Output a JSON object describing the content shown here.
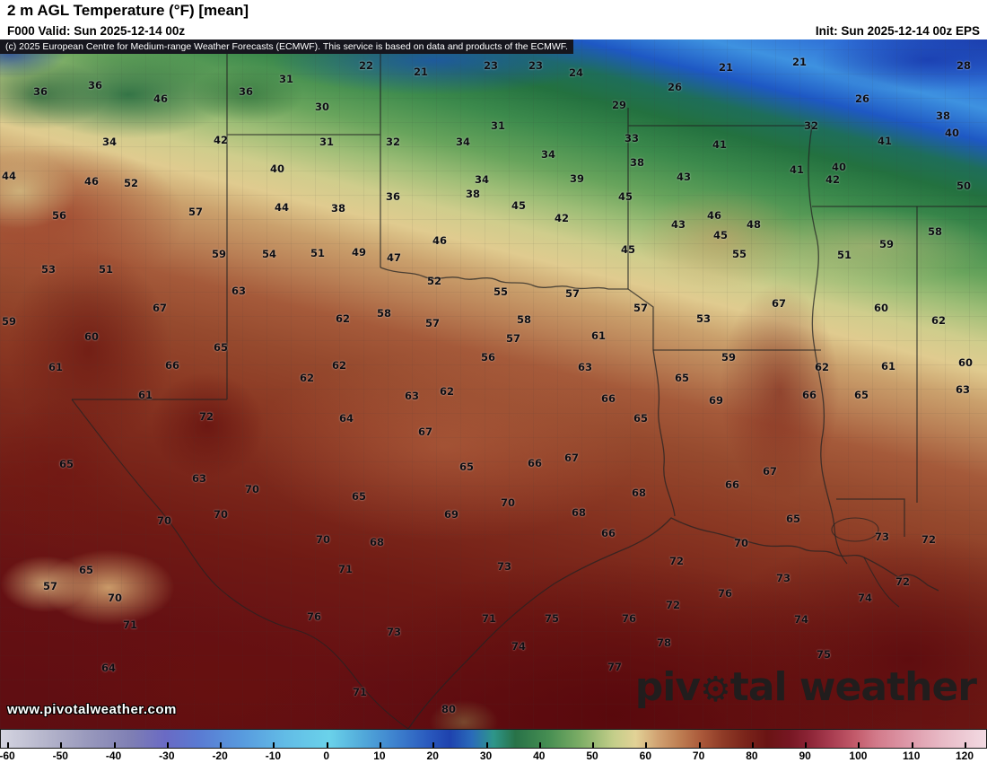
{
  "header": {
    "title": "2 m AGL Temperature (°F) [mean]",
    "valid": "F000 Valid: Sun 2025-12-14 00z",
    "init": "Init: Sun 2025-12-14 00z EPS",
    "copyright": "(c) 2025 European Centre for Medium-range Weather Forecasts (ECMWF). This service is based on data and products of the ECMWF."
  },
  "watermark": "www.pivotalweather.com",
  "logo": {
    "part1": "piv",
    "gear": "⚙",
    "part2": "tal weather"
  },
  "chart_data": {
    "type": "heatmap",
    "title": "2 m AGL Temperature (°F) [mean]",
    "units": "°F",
    "model": "EPS",
    "forecast_hour": "F000",
    "valid_time": "Sun 2025-12-14 00z",
    "init_time": "Sun 2025-12-14 00z",
    "colorbar": {
      "min": -60,
      "max": 120,
      "ticks": [
        -60,
        -50,
        -40,
        -30,
        -20,
        -10,
        0,
        10,
        20,
        30,
        40,
        50,
        60,
        70,
        80,
        90,
        100,
        110,
        120
      ],
      "stops": [
        [
          -60,
          "#d4d4e0"
        ],
        [
          -52,
          "#b6b6cc"
        ],
        [
          -44,
          "#9898bc"
        ],
        [
          -36,
          "#7e7eb4"
        ],
        [
          -30,
          "#6a6ac4"
        ],
        [
          -24,
          "#5a7ad2"
        ],
        [
          -16,
          "#589ade"
        ],
        [
          -8,
          "#62bce6"
        ],
        [
          0,
          "#6ad2ea"
        ],
        [
          6,
          "#52aada"
        ],
        [
          12,
          "#3e82ce"
        ],
        [
          18,
          "#2a5abe"
        ],
        [
          22,
          "#1e42ae"
        ],
        [
          26,
          "#2a6aba"
        ],
        [
          30,
          "#2e968a"
        ],
        [
          34,
          "#287248"
        ],
        [
          40,
          "#468e52"
        ],
        [
          46,
          "#7eae66"
        ],
        [
          52,
          "#c4ce8a"
        ],
        [
          56,
          "#e2d296"
        ],
        [
          60,
          "#d1a272"
        ],
        [
          64,
          "#be7e52"
        ],
        [
          68,
          "#aa583a"
        ],
        [
          72,
          "#8e3a26"
        ],
        [
          76,
          "#7a241a"
        ],
        [
          80,
          "#6a1414"
        ],
        [
          84,
          "#761622"
        ],
        [
          88,
          "#8e2638"
        ],
        [
          92,
          "#aa3e52"
        ],
        [
          96,
          "#c25a6a"
        ],
        [
          100,
          "#d27a8a"
        ],
        [
          106,
          "#de9aaa"
        ],
        [
          112,
          "#e8bac6"
        ],
        [
          120,
          "#f2dae2"
        ]
      ]
    },
    "station_values": [
      [
        408,
        73,
        22
      ],
      [
        469,
        80,
        21
      ],
      [
        547,
        73,
        23
      ],
      [
        597,
        73,
        23
      ],
      [
        642,
        81,
        24
      ],
      [
        809,
        75,
        21
      ],
      [
        891,
        69,
        21
      ],
      [
        1074,
        73,
        28
      ],
      [
        45,
        102,
        36
      ],
      [
        106,
        95,
        36
      ],
      [
        179,
        110,
        46
      ],
      [
        274,
        102,
        36
      ],
      [
        319,
        88,
        31
      ],
      [
        752,
        97,
        26
      ],
      [
        961,
        110,
        26
      ],
      [
        359,
        119,
        30
      ],
      [
        690,
        117,
        29
      ],
      [
        1051,
        129,
        38
      ],
      [
        555,
        140,
        31
      ],
      [
        904,
        140,
        32
      ],
      [
        1061,
        148,
        40
      ],
      [
        122,
        158,
        34
      ],
      [
        246,
        156,
        42
      ],
      [
        364,
        158,
        31
      ],
      [
        438,
        158,
        32
      ],
      [
        516,
        158,
        34
      ],
      [
        704,
        154,
        33
      ],
      [
        802,
        161,
        41
      ],
      [
        986,
        157,
        41
      ],
      [
        611,
        172,
        34
      ],
      [
        710,
        181,
        38
      ],
      [
        888,
        189,
        41
      ],
      [
        935,
        186,
        40
      ],
      [
        10,
        196,
        44
      ],
      [
        102,
        202,
        46
      ],
      [
        146,
        204,
        52
      ],
      [
        309,
        188,
        40
      ],
      [
        643,
        199,
        39
      ],
      [
        1074,
        207,
        50
      ],
      [
        537,
        200,
        34
      ],
      [
        762,
        197,
        43
      ],
      [
        928,
        200,
        42
      ],
      [
        438,
        219,
        36
      ],
      [
        527,
        216,
        38
      ],
      [
        697,
        219,
        45
      ],
      [
        796,
        240,
        46
      ],
      [
        66,
        240,
        56
      ],
      [
        218,
        236,
        57
      ],
      [
        314,
        231,
        44
      ],
      [
        377,
        232,
        38
      ],
      [
        578,
        229,
        45
      ],
      [
        626,
        243,
        42
      ],
      [
        803,
        262,
        45
      ],
      [
        1042,
        258,
        58
      ],
      [
        756,
        250,
        43
      ],
      [
        840,
        250,
        48
      ],
      [
        490,
        268,
        46
      ],
      [
        244,
        283,
        59
      ],
      [
        300,
        283,
        54
      ],
      [
        354,
        282,
        51
      ],
      [
        400,
        281,
        49
      ],
      [
        439,
        287,
        47
      ],
      [
        700,
        278,
        45
      ],
      [
        824,
        283,
        55
      ],
      [
        941,
        284,
        51
      ],
      [
        988,
        272,
        59
      ],
      [
        54,
        300,
        53
      ],
      [
        118,
        300,
        51
      ],
      [
        484,
        313,
        52
      ],
      [
        266,
        324,
        63
      ],
      [
        558,
        325,
        55
      ],
      [
        638,
        327,
        57
      ],
      [
        714,
        343,
        57
      ],
      [
        10,
        358,
        59
      ],
      [
        178,
        343,
        67
      ],
      [
        382,
        355,
        62
      ],
      [
        428,
        349,
        58
      ],
      [
        868,
        338,
        67
      ],
      [
        982,
        343,
        60
      ],
      [
        1046,
        357,
        62
      ],
      [
        482,
        360,
        57
      ],
      [
        584,
        356,
        58
      ],
      [
        784,
        355,
        53
      ],
      [
        102,
        375,
        60
      ],
      [
        246,
        387,
        65
      ],
      [
        572,
        377,
        57
      ],
      [
        667,
        374,
        61
      ],
      [
        62,
        409,
        61
      ],
      [
        192,
        407,
        66
      ],
      [
        378,
        407,
        62
      ],
      [
        544,
        398,
        56
      ],
      [
        652,
        409,
        63
      ],
      [
        812,
        398,
        59
      ],
      [
        916,
        409,
        62
      ],
      [
        990,
        408,
        61
      ],
      [
        1076,
        404,
        60
      ],
      [
        342,
        421,
        62
      ],
      [
        498,
        436,
        62
      ],
      [
        760,
        421,
        65
      ],
      [
        162,
        440,
        61
      ],
      [
        230,
        464,
        72
      ],
      [
        459,
        441,
        63
      ],
      [
        678,
        444,
        66
      ],
      [
        798,
        446,
        69
      ],
      [
        902,
        440,
        66
      ],
      [
        960,
        440,
        65
      ],
      [
        1073,
        434,
        63
      ],
      [
        386,
        466,
        64
      ],
      [
        474,
        481,
        67
      ],
      [
        714,
        466,
        65
      ],
      [
        74,
        517,
        65
      ],
      [
        596,
        516,
        66
      ],
      [
        637,
        510,
        67
      ],
      [
        520,
        520,
        65
      ],
      [
        858,
        525,
        67
      ],
      [
        222,
        533,
        63
      ],
      [
        281,
        545,
        70
      ],
      [
        400,
        553,
        65
      ],
      [
        503,
        573,
        69
      ],
      [
        566,
        560,
        70
      ],
      [
        712,
        549,
        68
      ],
      [
        816,
        540,
        66
      ],
      [
        884,
        578,
        65
      ],
      [
        983,
        598,
        73
      ],
      [
        1035,
        601,
        72
      ],
      [
        183,
        580,
        70
      ],
      [
        246,
        573,
        70
      ],
      [
        360,
        601,
        70
      ],
      [
        420,
        604,
        68
      ],
      [
        645,
        571,
        68
      ],
      [
        678,
        594,
        66
      ],
      [
        826,
        605,
        70
      ],
      [
        96,
        635,
        65
      ],
      [
        56,
        653,
        57
      ],
      [
        385,
        634,
        71
      ],
      [
        562,
        631,
        73
      ],
      [
        754,
        625,
        72
      ],
      [
        873,
        644,
        73
      ],
      [
        1006,
        648,
        72
      ],
      [
        128,
        666,
        70
      ],
      [
        350,
        687,
        76
      ],
      [
        545,
        689,
        71
      ],
      [
        615,
        689,
        75
      ],
      [
        701,
        689,
        76
      ],
      [
        750,
        674,
        72
      ],
      [
        808,
        661,
        76
      ],
      [
        893,
        690,
        74
      ],
      [
        964,
        666,
        74
      ],
      [
        145,
        696,
        71
      ],
      [
        439,
        704,
        73
      ],
      [
        578,
        720,
        74
      ],
      [
        740,
        716,
        78
      ],
      [
        918,
        729,
        75
      ],
      [
        121,
        744,
        64
      ],
      [
        685,
        743,
        77
      ],
      [
        401,
        771,
        71
      ],
      [
        500,
        790,
        80
      ]
    ]
  }
}
